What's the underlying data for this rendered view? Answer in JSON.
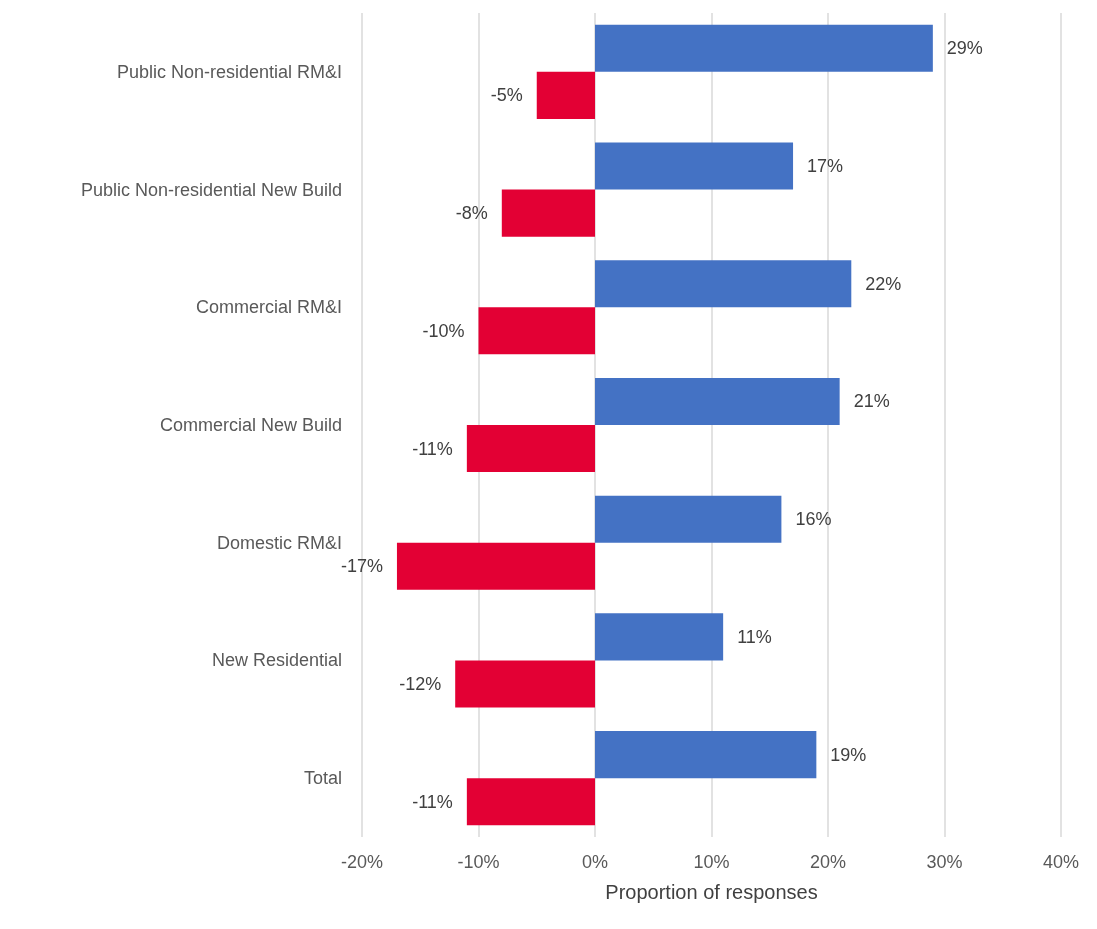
{
  "chart_data": {
    "type": "bar",
    "orientation": "horizontal",
    "xlabel": "Proportion of responses",
    "categories": [
      "Public Non-residential RM&I",
      "Public Non-residential New Build",
      "Commercial RM&I",
      "Commercial New Build",
      "Domestic RM&I",
      "New Residential",
      "Total"
    ],
    "series": [
      {
        "color": "#4472c4",
        "values": [
          29,
          17,
          22,
          21,
          16,
          11,
          19
        ],
        "value_labels": [
          "29%",
          "17%",
          "22%",
          "21%",
          "16%",
          "11%",
          "19%"
        ]
      },
      {
        "color": "#e30034",
        "values": [
          -5,
          -8,
          -10,
          -11,
          -17,
          -12,
          -11
        ],
        "value_labels": [
          "-5%",
          "-8%",
          "-10%",
          "-11%",
          "-17%",
          "-12%",
          "-11%"
        ]
      }
    ],
    "xlim": [
      -20,
      40
    ],
    "xticks": [
      {
        "value": -20,
        "label": "-20%"
      },
      {
        "value": -10,
        "label": "-10%"
      },
      {
        "value": 0,
        "label": "0%"
      },
      {
        "value": 10,
        "label": "10%"
      },
      {
        "value": 20,
        "label": "20%"
      },
      {
        "value": 30,
        "label": "30%"
      },
      {
        "value": 40,
        "label": "40%"
      }
    ],
    "grid": "x"
  }
}
